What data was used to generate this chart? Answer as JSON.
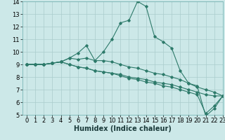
{
  "xlabel": "Humidex (Indice chaleur)",
  "bg_color": "#cce8e8",
  "line_color": "#2d7a6a",
  "grid_color": "#aacccc",
  "xlim": [
    -0.5,
    23
  ],
  "ylim": [
    5,
    14
  ],
  "xticks": [
    0,
    1,
    2,
    3,
    4,
    5,
    6,
    7,
    8,
    9,
    10,
    11,
    12,
    13,
    14,
    15,
    16,
    17,
    18,
    19,
    20,
    21,
    22,
    23
  ],
  "yticks": [
    5,
    6,
    7,
    8,
    9,
    10,
    11,
    12,
    13,
    14
  ],
  "series": [
    [
      9.0,
      9.0,
      9.0,
      9.1,
      9.2,
      9.5,
      9.9,
      10.5,
      9.3,
      10.0,
      11.0,
      12.3,
      12.5,
      14.0,
      13.6,
      11.2,
      10.8,
      10.3,
      8.5,
      7.5,
      7.3,
      4.9,
      5.5,
      6.5
    ],
    [
      9.0,
      9.0,
      9.0,
      9.1,
      9.2,
      9.5,
      9.4,
      9.5,
      9.3,
      9.3,
      9.2,
      9.0,
      8.8,
      8.7,
      8.5,
      8.3,
      8.2,
      8.0,
      7.8,
      7.5,
      7.2,
      7.0,
      6.8,
      6.5
    ],
    [
      9.0,
      9.0,
      9.0,
      9.1,
      9.2,
      9.0,
      8.8,
      8.7,
      8.5,
      8.4,
      8.3,
      8.2,
      8.0,
      7.9,
      7.8,
      7.6,
      7.5,
      7.4,
      7.2,
      7.0,
      6.8,
      6.6,
      6.5,
      6.5
    ],
    [
      9.0,
      9.0,
      9.0,
      9.1,
      9.2,
      9.0,
      8.8,
      8.7,
      8.5,
      8.4,
      8.3,
      8.1,
      7.9,
      7.8,
      7.6,
      7.5,
      7.3,
      7.2,
      7.0,
      6.8,
      6.6,
      5.1,
      5.7,
      6.5
    ]
  ],
  "xlabel_fontsize": 7,
  "tick_fontsize": 6
}
